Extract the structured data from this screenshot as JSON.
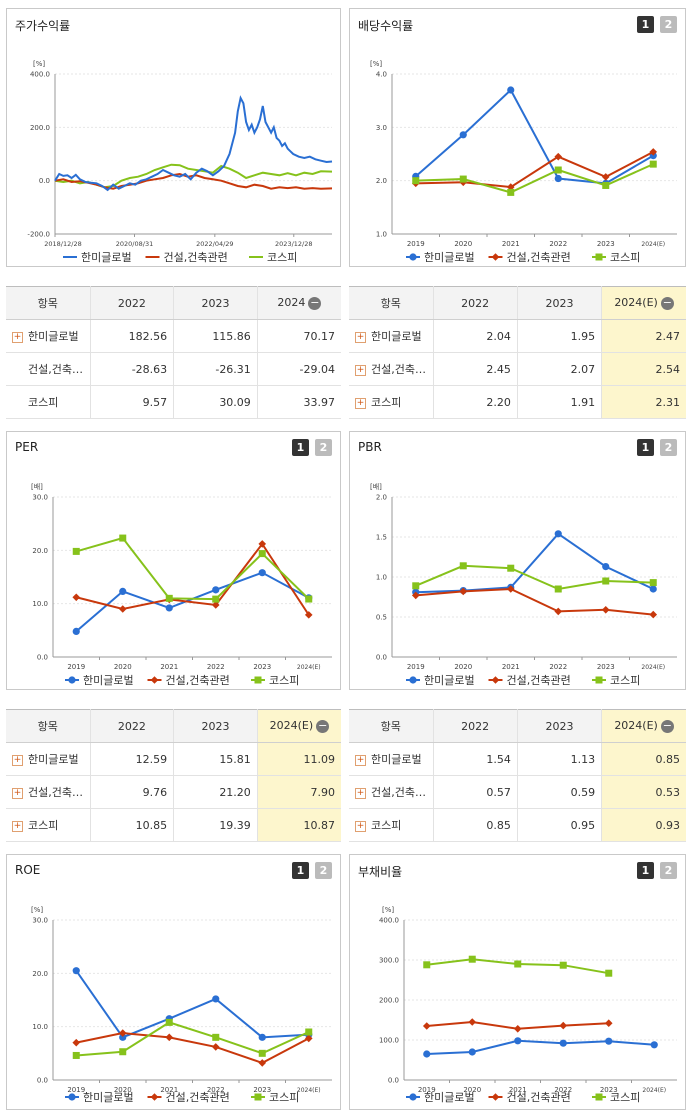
{
  "panels": {
    "stock": {
      "title": "주가수익률"
    },
    "dividend": {
      "title": "배당수익률"
    },
    "per": {
      "title": "PER"
    },
    "pbr": {
      "title": "PBR"
    },
    "roe": {
      "title": "ROE"
    },
    "debt": {
      "title": "부채비율"
    }
  },
  "page_buttons": [
    "1",
    "2"
  ],
  "legend": [
    "한미글로벌",
    "건설,건축관련",
    "코스피"
  ],
  "colors": {
    "s1": "#2a6fd3",
    "s2": "#c8380c",
    "s3": "#86c21b"
  },
  "chart_data": [
    {
      "id": "stock",
      "type": "line",
      "unit": "[%]",
      "yticks": [
        "400.0",
        "200.0",
        "0.0",
        "-200.0"
      ],
      "ylim": [
        -200,
        400
      ],
      "xtick_labels": [
        "2018/12/28",
        "2020/08/31",
        "2022/04/29",
        "2023/12/28"
      ],
      "xtick_pos": [
        0,
        0.287,
        0.577,
        0.862
      ],
      "series": [
        {
          "name": "한미글로벌",
          "x": [
            0,
            0.015,
            0.03,
            0.045,
            0.06,
            0.075,
            0.09,
            0.11,
            0.13,
            0.15,
            0.17,
            0.19,
            0.21,
            0.23,
            0.25,
            0.27,
            0.29,
            0.31,
            0.33,
            0.35,
            0.37,
            0.39,
            0.41,
            0.43,
            0.45,
            0.47,
            0.49,
            0.51,
            0.53,
            0.55,
            0.57,
            0.59,
            0.61,
            0.63,
            0.65,
            0.66,
            0.67,
            0.68,
            0.69,
            0.7,
            0.71,
            0.72,
            0.73,
            0.74,
            0.75,
            0.76,
            0.77,
            0.78,
            0.79,
            0.8,
            0.81,
            0.82,
            0.83,
            0.84,
            0.85,
            0.86,
            0.88,
            0.9,
            0.92,
            0.94,
            0.96,
            0.98,
            1.0
          ],
          "values": [
            0,
            25,
            18,
            20,
            10,
            22,
            5,
            -5,
            -8,
            -10,
            -20,
            -35,
            -15,
            -30,
            -20,
            -10,
            -15,
            0,
            5,
            15,
            25,
            40,
            30,
            20,
            15,
            25,
            5,
            30,
            45,
            35,
            20,
            35,
            55,
            100,
            180,
            260,
            310,
            290,
            220,
            190,
            210,
            180,
            200,
            230,
            280,
            220,
            200,
            180,
            200,
            160,
            150,
            130,
            140,
            120,
            110,
            100,
            90,
            85,
            90,
            80,
            75,
            70,
            72
          ]
        },
        {
          "name": "건설,건축관련",
          "x": [
            0,
            0.03,
            0.06,
            0.09,
            0.12,
            0.15,
            0.18,
            0.21,
            0.24,
            0.27,
            0.3,
            0.33,
            0.36,
            0.39,
            0.42,
            0.45,
            0.48,
            0.51,
            0.54,
            0.57,
            0.6,
            0.63,
            0.66,
            0.69,
            0.72,
            0.75,
            0.78,
            0.81,
            0.84,
            0.87,
            0.9,
            0.93,
            0.96,
            1.0
          ],
          "values": [
            0,
            5,
            -5,
            -2,
            -8,
            -15,
            -25,
            -30,
            -20,
            -15,
            -10,
            0,
            5,
            10,
            20,
            25,
            15,
            20,
            10,
            5,
            0,
            -10,
            -20,
            -25,
            -15,
            -20,
            -30,
            -25,
            -28,
            -25,
            -30,
            -28,
            -30,
            -29
          ]
        },
        {
          "name": "코스피",
          "x": [
            0,
            0.03,
            0.06,
            0.09,
            0.12,
            0.15,
            0.18,
            0.21,
            0.24,
            0.27,
            0.3,
            0.33,
            0.36,
            0.39,
            0.42,
            0.45,
            0.48,
            0.51,
            0.54,
            0.57,
            0.6,
            0.63,
            0.66,
            0.69,
            0.72,
            0.75,
            0.78,
            0.81,
            0.84,
            0.87,
            0.9,
            0.93,
            0.96,
            1.0
          ],
          "values": [
            0,
            -5,
            0,
            -10,
            -5,
            -15,
            -25,
            -20,
            0,
            10,
            15,
            25,
            40,
            50,
            60,
            58,
            45,
            40,
            35,
            30,
            55,
            45,
            30,
            10,
            20,
            30,
            25,
            20,
            28,
            20,
            30,
            25,
            35,
            34
          ]
        }
      ]
    },
    {
      "id": "dividend",
      "type": "line",
      "unit": "[%]",
      "yticks": [
        "4.0",
        "3.0",
        "2.0",
        "1.0"
      ],
      "ylim": [
        1,
        4
      ],
      "categories": [
        "2019",
        "2020",
        "2021",
        "2022",
        "2023",
        "2024(E)"
      ],
      "series": [
        {
          "name": "한미글로벌",
          "values": [
            2.08,
            2.86,
            3.7,
            2.04,
            1.95,
            2.47
          ]
        },
        {
          "name": "건설,건축관련",
          "values": [
            1.95,
            1.97,
            1.88,
            2.45,
            2.07,
            2.54
          ]
        },
        {
          "name": "코스피",
          "values": [
            2.0,
            2.03,
            1.78,
            2.2,
            1.91,
            2.31
          ]
        }
      ]
    },
    {
      "id": "per",
      "type": "line",
      "unit": "[배]",
      "yticks": [
        "30.0",
        "20.0",
        "10.0",
        "0.0"
      ],
      "ylim": [
        0,
        30
      ],
      "categories": [
        "2019",
        "2020",
        "2021",
        "2022",
        "2023",
        "2024(E)"
      ],
      "series": [
        {
          "name": "한미글로벌",
          "values": [
            4.8,
            12.3,
            9.2,
            12.59,
            15.81,
            11.09
          ]
        },
        {
          "name": "건설,건축관련",
          "values": [
            11.2,
            9.0,
            10.8,
            9.76,
            21.2,
            7.9
          ]
        },
        {
          "name": "코스피",
          "values": [
            19.8,
            22.3,
            11.0,
            10.85,
            19.39,
            10.87
          ]
        }
      ]
    },
    {
      "id": "pbr",
      "type": "line",
      "unit": "[배]",
      "yticks": [
        "2.0",
        "1.5",
        "1.0",
        "0.5",
        "0.0"
      ],
      "ylim": [
        0,
        2
      ],
      "categories": [
        "2019",
        "2020",
        "2021",
        "2022",
        "2023",
        "2024(E)"
      ],
      "series": [
        {
          "name": "한미글로벌",
          "values": [
            0.81,
            0.83,
            0.87,
            1.54,
            1.13,
            0.85
          ]
        },
        {
          "name": "건설,건축관련",
          "values": [
            0.77,
            0.82,
            0.85,
            0.57,
            0.59,
            0.53
          ]
        },
        {
          "name": "코스피",
          "values": [
            0.89,
            1.14,
            1.11,
            0.85,
            0.95,
            0.93
          ]
        }
      ]
    },
    {
      "id": "roe",
      "type": "line",
      "unit": "[%]",
      "yticks": [
        "30.0",
        "20.0",
        "10.0",
        "0.0"
      ],
      "ylim": [
        0,
        30
      ],
      "categories": [
        "2019",
        "2020",
        "2021",
        "2022",
        "2023",
        "2024(E)"
      ],
      "series": [
        {
          "name": "한미글로벌",
          "values": [
            20.5,
            8.0,
            11.5,
            15.2,
            8.0,
            8.5
          ]
        },
        {
          "name": "건설,건축관련",
          "values": [
            7.0,
            8.8,
            8.0,
            6.2,
            3.2,
            7.8
          ]
        },
        {
          "name": "코스피",
          "values": [
            4.6,
            5.3,
            10.8,
            8.0,
            5.0,
            9.0
          ]
        }
      ]
    },
    {
      "id": "debt",
      "type": "line",
      "unit": "[%]",
      "yticks": [
        "400.0",
        "300.0",
        "200.0",
        "100.0",
        "0.0"
      ],
      "ylim": [
        0,
        400
      ],
      "categories": [
        "2019",
        "2020",
        "2021",
        "2022",
        "2023",
        "2024(E)"
      ],
      "series": [
        {
          "name": "한미글로벌",
          "values": [
            65,
            70,
            98,
            92,
            97,
            88
          ]
        },
        {
          "name": "건설,건축관련",
          "values": [
            135,
            145,
            128,
            136,
            142,
            null
          ]
        },
        {
          "name": "코스피",
          "values": [
            288,
            302,
            290,
            287,
            267,
            null
          ]
        }
      ]
    }
  ],
  "tables": {
    "stock": {
      "headers": [
        "항목",
        "2022",
        "2023",
        "2024"
      ],
      "rows": [
        {
          "name": "한미글로벌",
          "plus": true,
          "values": [
            "182.56",
            "115.86",
            "70.17"
          ]
        },
        {
          "name": "건설,건축…",
          "plus": false,
          "values": [
            "-28.63",
            "-26.31",
            "-29.04"
          ]
        },
        {
          "name": "코스피",
          "plus": false,
          "values": [
            "9.57",
            "30.09",
            "33.97"
          ]
        }
      ]
    },
    "dividend": {
      "headers": [
        "항목",
        "2022",
        "2023",
        "2024(E)"
      ],
      "rows": [
        {
          "name": "한미글로벌",
          "plus": true,
          "values": [
            "2.04",
            "1.95",
            "2.47"
          ]
        },
        {
          "name": "건설,건축…",
          "plus": true,
          "values": [
            "2.45",
            "2.07",
            "2.54"
          ]
        },
        {
          "name": "코스피",
          "plus": true,
          "values": [
            "2.20",
            "1.91",
            "2.31"
          ]
        }
      ]
    },
    "per": {
      "headers": [
        "항목",
        "2022",
        "2023",
        "2024(E)"
      ],
      "rows": [
        {
          "name": "한미글로벌",
          "plus": true,
          "values": [
            "12.59",
            "15.81",
            "11.09"
          ]
        },
        {
          "name": "건설,건축…",
          "plus": true,
          "values": [
            "9.76",
            "21.20",
            "7.90"
          ]
        },
        {
          "name": "코스피",
          "plus": true,
          "values": [
            "10.85",
            "19.39",
            "10.87"
          ]
        }
      ]
    },
    "pbr": {
      "headers": [
        "항목",
        "2022",
        "2023",
        "2024(E)"
      ],
      "rows": [
        {
          "name": "한미글로벌",
          "plus": true,
          "values": [
            "1.54",
            "1.13",
            "0.85"
          ]
        },
        {
          "name": "건설,건축…",
          "plus": true,
          "values": [
            "0.57",
            "0.59",
            "0.53"
          ]
        },
        {
          "name": "코스피",
          "plus": true,
          "values": [
            "0.85",
            "0.95",
            "0.93"
          ]
        }
      ]
    }
  }
}
